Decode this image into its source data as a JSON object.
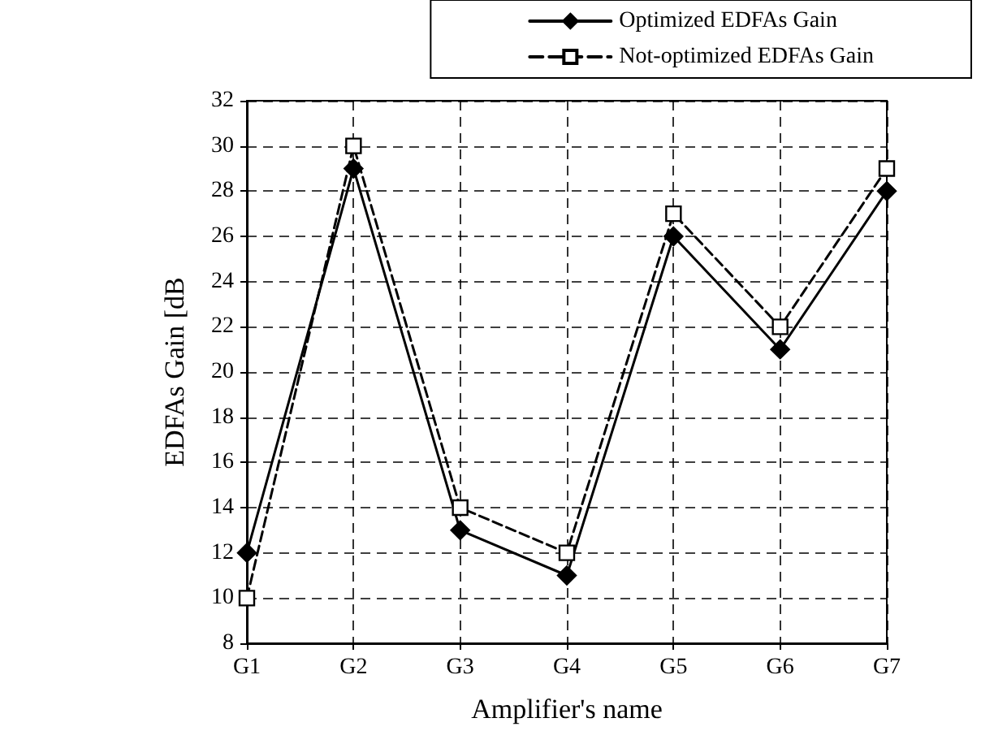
{
  "chart_data": {
    "type": "line",
    "xlabel": "Amplifier's name",
    "ylabel": "EDFAs Gain [dB",
    "categories": [
      "G1",
      "G2",
      "G3",
      "G4",
      "G5",
      "G6",
      "G7"
    ],
    "series": [
      {
        "name": "Optimized EDFAs Gain",
        "color": "#000000",
        "marker": "diamond",
        "line_style": "solid",
        "values": [
          12,
          29,
          13,
          11,
          26,
          21,
          28
        ]
      },
      {
        "name": "Not-optimized EDFAs Gain",
        "color": "#000000",
        "marker": "square",
        "line_style": "dashed",
        "values": [
          10,
          30,
          14,
          12,
          27,
          22,
          29
        ]
      }
    ],
    "ylim": [
      8,
      32
    ],
    "yticks": [
      8,
      10,
      12,
      14,
      16,
      18,
      20,
      22,
      24,
      26,
      28,
      30,
      32
    ],
    "grid": true,
    "legend": "top right"
  }
}
